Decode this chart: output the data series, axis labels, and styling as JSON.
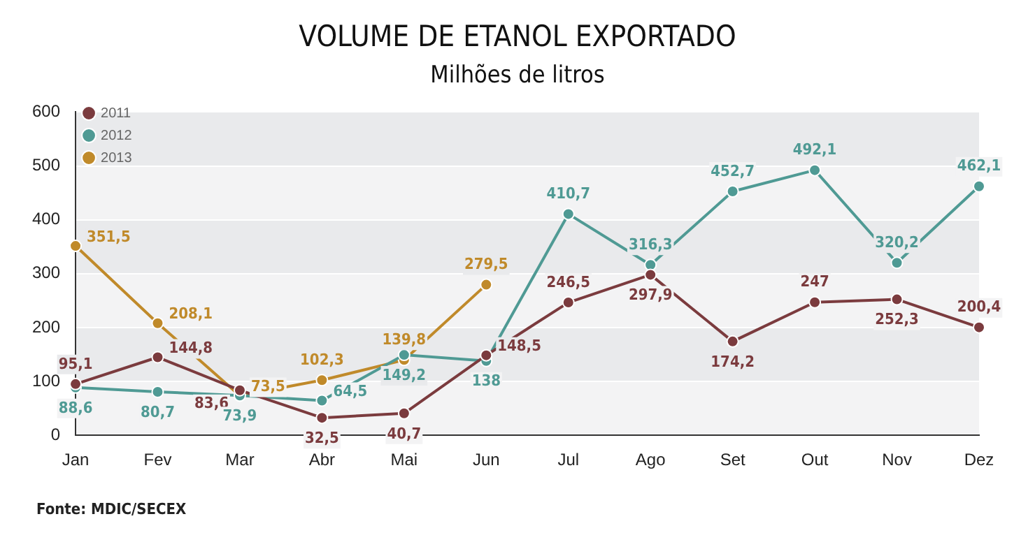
{
  "chart_data": {
    "type": "line",
    "title": "VOLUME DE ETANOL EXPORTADO",
    "subtitle": "Milhões de litros",
    "categories": [
      "Jan",
      "Fev",
      "Mar",
      "Abr",
      "Mai",
      "Jun",
      "Jul",
      "Ago",
      "Set",
      "Out",
      "Nov",
      "Dez"
    ],
    "series": [
      {
        "name": "2011",
        "color": "#7b3b3e",
        "values": [
          95.1,
          144.8,
          83.6,
          32.5,
          40.7,
          148.5,
          246.5,
          297.9,
          174.2,
          247,
          252.3,
          200.4
        ],
        "value_labels": [
          "95,1",
          "144,8",
          "83,6",
          "32,5",
          "40,7",
          "148,5",
          "246,5",
          "297,9",
          "174,2",
          "247",
          "252,3",
          "200,4"
        ]
      },
      {
        "name": "2012",
        "color": "#4f9a94",
        "values": [
          88.6,
          80.7,
          73.9,
          64.5,
          149.2,
          138,
          410.7,
          316.3,
          452.7,
          492.1,
          320.2,
          462.1
        ],
        "value_labels": [
          "88,6",
          "80,7",
          "73,9",
          "64,5",
          "149,2",
          "138",
          "410,7",
          "316,3",
          "452,7",
          "492,1",
          "320,2",
          "462,1"
        ]
      },
      {
        "name": "2013",
        "color": "#c08a2a",
        "values": [
          351.5,
          208.1,
          73.5,
          102.3,
          139.8,
          279.5,
          null,
          null,
          null,
          null,
          null,
          null
        ],
        "value_labels": [
          "351,5",
          "208,1",
          "73,5",
          "102,3",
          "139,8",
          "279,5",
          null,
          null,
          null,
          null,
          null,
          null
        ]
      }
    ],
    "ylim": [
      0,
      600
    ],
    "yticks": [
      0,
      100,
      200,
      300,
      400,
      500,
      600
    ],
    "grid": "y",
    "legend": "top left",
    "marker": "circle",
    "line_style": "solid",
    "annotations": [
      "Fonte: MDIC/SECEX"
    ]
  }
}
